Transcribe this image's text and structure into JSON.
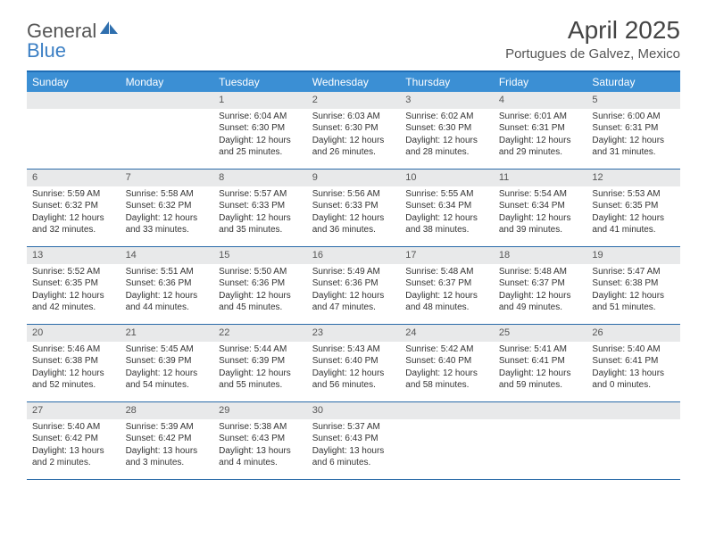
{
  "brand": {
    "part1": "General",
    "part2": "Blue"
  },
  "title": "April 2025",
  "location": "Portugues de Galvez, Mexico",
  "colors": {
    "header_bar": "#3b8fd4",
    "top_border": "#1f6db5",
    "row_border": "#2a6aa8",
    "daynum_bg": "#e8e9ea",
    "text": "#333333",
    "brand_gray": "#555555",
    "brand_blue": "#3b7fc4"
  },
  "weekdays": [
    "Sunday",
    "Monday",
    "Tuesday",
    "Wednesday",
    "Thursday",
    "Friday",
    "Saturday"
  ],
  "layout": {
    "columns": 7,
    "rows": 5,
    "first_weekday_index": 2,
    "days_in_month": 30
  },
  "days": {
    "1": {
      "sunrise": "Sunrise: 6:04 AM",
      "sunset": "Sunset: 6:30 PM",
      "daylight": "Daylight: 12 hours and 25 minutes."
    },
    "2": {
      "sunrise": "Sunrise: 6:03 AM",
      "sunset": "Sunset: 6:30 PM",
      "daylight": "Daylight: 12 hours and 26 minutes."
    },
    "3": {
      "sunrise": "Sunrise: 6:02 AM",
      "sunset": "Sunset: 6:30 PM",
      "daylight": "Daylight: 12 hours and 28 minutes."
    },
    "4": {
      "sunrise": "Sunrise: 6:01 AM",
      "sunset": "Sunset: 6:31 PM",
      "daylight": "Daylight: 12 hours and 29 minutes."
    },
    "5": {
      "sunrise": "Sunrise: 6:00 AM",
      "sunset": "Sunset: 6:31 PM",
      "daylight": "Daylight: 12 hours and 31 minutes."
    },
    "6": {
      "sunrise": "Sunrise: 5:59 AM",
      "sunset": "Sunset: 6:32 PM",
      "daylight": "Daylight: 12 hours and 32 minutes."
    },
    "7": {
      "sunrise": "Sunrise: 5:58 AM",
      "sunset": "Sunset: 6:32 PM",
      "daylight": "Daylight: 12 hours and 33 minutes."
    },
    "8": {
      "sunrise": "Sunrise: 5:57 AM",
      "sunset": "Sunset: 6:33 PM",
      "daylight": "Daylight: 12 hours and 35 minutes."
    },
    "9": {
      "sunrise": "Sunrise: 5:56 AM",
      "sunset": "Sunset: 6:33 PM",
      "daylight": "Daylight: 12 hours and 36 minutes."
    },
    "10": {
      "sunrise": "Sunrise: 5:55 AM",
      "sunset": "Sunset: 6:34 PM",
      "daylight": "Daylight: 12 hours and 38 minutes."
    },
    "11": {
      "sunrise": "Sunrise: 5:54 AM",
      "sunset": "Sunset: 6:34 PM",
      "daylight": "Daylight: 12 hours and 39 minutes."
    },
    "12": {
      "sunrise": "Sunrise: 5:53 AM",
      "sunset": "Sunset: 6:35 PM",
      "daylight": "Daylight: 12 hours and 41 minutes."
    },
    "13": {
      "sunrise": "Sunrise: 5:52 AM",
      "sunset": "Sunset: 6:35 PM",
      "daylight": "Daylight: 12 hours and 42 minutes."
    },
    "14": {
      "sunrise": "Sunrise: 5:51 AM",
      "sunset": "Sunset: 6:36 PM",
      "daylight": "Daylight: 12 hours and 44 minutes."
    },
    "15": {
      "sunrise": "Sunrise: 5:50 AM",
      "sunset": "Sunset: 6:36 PM",
      "daylight": "Daylight: 12 hours and 45 minutes."
    },
    "16": {
      "sunrise": "Sunrise: 5:49 AM",
      "sunset": "Sunset: 6:36 PM",
      "daylight": "Daylight: 12 hours and 47 minutes."
    },
    "17": {
      "sunrise": "Sunrise: 5:48 AM",
      "sunset": "Sunset: 6:37 PM",
      "daylight": "Daylight: 12 hours and 48 minutes."
    },
    "18": {
      "sunrise": "Sunrise: 5:48 AM",
      "sunset": "Sunset: 6:37 PM",
      "daylight": "Daylight: 12 hours and 49 minutes."
    },
    "19": {
      "sunrise": "Sunrise: 5:47 AM",
      "sunset": "Sunset: 6:38 PM",
      "daylight": "Daylight: 12 hours and 51 minutes."
    },
    "20": {
      "sunrise": "Sunrise: 5:46 AM",
      "sunset": "Sunset: 6:38 PM",
      "daylight": "Daylight: 12 hours and 52 minutes."
    },
    "21": {
      "sunrise": "Sunrise: 5:45 AM",
      "sunset": "Sunset: 6:39 PM",
      "daylight": "Daylight: 12 hours and 54 minutes."
    },
    "22": {
      "sunrise": "Sunrise: 5:44 AM",
      "sunset": "Sunset: 6:39 PM",
      "daylight": "Daylight: 12 hours and 55 minutes."
    },
    "23": {
      "sunrise": "Sunrise: 5:43 AM",
      "sunset": "Sunset: 6:40 PM",
      "daylight": "Daylight: 12 hours and 56 minutes."
    },
    "24": {
      "sunrise": "Sunrise: 5:42 AM",
      "sunset": "Sunset: 6:40 PM",
      "daylight": "Daylight: 12 hours and 58 minutes."
    },
    "25": {
      "sunrise": "Sunrise: 5:41 AM",
      "sunset": "Sunset: 6:41 PM",
      "daylight": "Daylight: 12 hours and 59 minutes."
    },
    "26": {
      "sunrise": "Sunrise: 5:40 AM",
      "sunset": "Sunset: 6:41 PM",
      "daylight": "Daylight: 13 hours and 0 minutes."
    },
    "27": {
      "sunrise": "Sunrise: 5:40 AM",
      "sunset": "Sunset: 6:42 PM",
      "daylight": "Daylight: 13 hours and 2 minutes."
    },
    "28": {
      "sunrise": "Sunrise: 5:39 AM",
      "sunset": "Sunset: 6:42 PM",
      "daylight": "Daylight: 13 hours and 3 minutes."
    },
    "29": {
      "sunrise": "Sunrise: 5:38 AM",
      "sunset": "Sunset: 6:43 PM",
      "daylight": "Daylight: 13 hours and 4 minutes."
    },
    "30": {
      "sunrise": "Sunrise: 5:37 AM",
      "sunset": "Sunset: 6:43 PM",
      "daylight": "Daylight: 13 hours and 6 minutes."
    }
  }
}
